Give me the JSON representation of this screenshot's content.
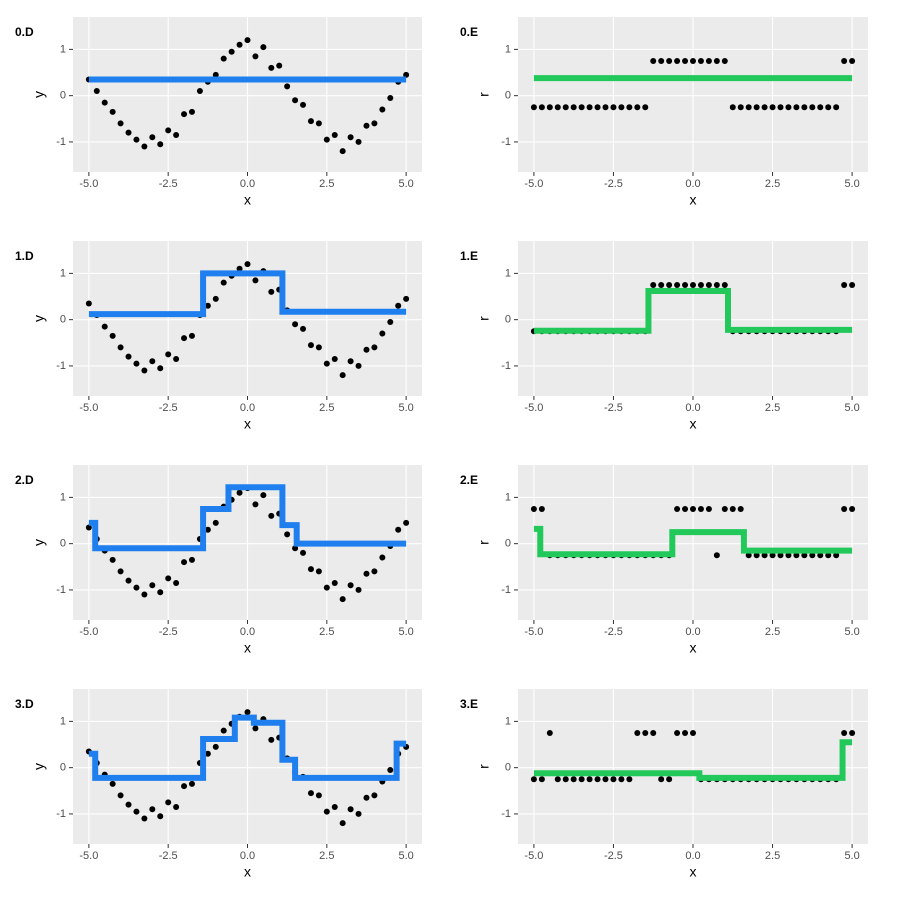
{
  "chart_data": [
    {
      "type": "scatter",
      "label": "0.D",
      "xlabel": "x",
      "ylabel": "y",
      "x": [
        -5,
        -4.75,
        -4.5,
        -4.25,
        -4,
        -3.75,
        -3.5,
        -3.25,
        -3,
        -2.75,
        -2.5,
        -2.25,
        -2,
        -1.75,
        -1.5,
        -1.25,
        -1,
        -0.75,
        -0.5,
        -0.25,
        0,
        0.25,
        0.5,
        0.75,
        1,
        1.25,
        1.5,
        1.75,
        2,
        2.25,
        2.5,
        2.75,
        3,
        3.25,
        3.5,
        3.75,
        4,
        4.25,
        4.5,
        4.75,
        5
      ],
      "y": [
        0.35,
        0.1,
        -0.15,
        -0.35,
        -0.6,
        -0.8,
        -0.95,
        -1.1,
        -0.9,
        -1.05,
        -0.75,
        -0.85,
        -0.4,
        -0.35,
        0.1,
        0.3,
        0.45,
        0.8,
        0.95,
        1.1,
        1.2,
        0.85,
        1.05,
        0.6,
        0.65,
        0.2,
        -0.1,
        -0.2,
        -0.55,
        -0.6,
        -0.95,
        -0.85,
        -1.2,
        -0.9,
        -1,
        -0.65,
        -0.6,
        -0.3,
        -0.05,
        0.3,
        0.45
      ],
      "point_color": "#000000",
      "line": {
        "x": [
          -5,
          5
        ],
        "y": [
          0.35,
          0.35
        ],
        "color": "#1f7fef"
      },
      "xlim": [
        -5.5,
        5.5
      ],
      "ylim": [
        -1.65,
        1.7
      ],
      "xticks": [
        {
          "value": -5,
          "label": "-5.0"
        },
        {
          "value": -2.5,
          "label": "-2.5"
        },
        {
          "value": 0,
          "label": "0.0"
        },
        {
          "value": 2.5,
          "label": "2.5"
        },
        {
          "value": 5,
          "label": "5.0"
        }
      ],
      "yticks": [
        -1,
        0,
        1
      ],
      "grid": true
    },
    {
      "type": "scatter",
      "label": "0.E",
      "xlabel": "x",
      "ylabel": "r",
      "x": [
        -5,
        -4.75,
        -4.5,
        -4.25,
        -4,
        -3.75,
        -3.5,
        -3.25,
        -3,
        -2.75,
        -2.5,
        -2.25,
        -2,
        -1.75,
        -1.5,
        -1.25,
        -1,
        -0.75,
        -0.5,
        -0.25,
        0,
        0.25,
        0.5,
        0.75,
        1,
        1.25,
        1.5,
        1.75,
        2,
        2.25,
        2.5,
        2.75,
        3,
        3.25,
        3.5,
        3.75,
        4,
        4.25,
        4.5,
        4.75,
        5
      ],
      "y": [
        -0.25,
        -0.25,
        -0.25,
        -0.25,
        -0.25,
        -0.25,
        -0.25,
        -0.25,
        -0.25,
        -0.25,
        -0.25,
        -0.25,
        -0.25,
        -0.25,
        -0.25,
        0.75,
        0.75,
        0.75,
        0.75,
        0.75,
        0.75,
        0.75,
        0.75,
        0.75,
        0.75,
        -0.25,
        -0.25,
        -0.25,
        -0.25,
        -0.25,
        -0.25,
        -0.25,
        -0.25,
        -0.25,
        -0.25,
        -0.25,
        -0.25,
        -0.25,
        -0.25,
        0.75,
        0.75
      ],
      "point_color": "#000000",
      "line": {
        "x": [
          -5,
          5
        ],
        "y": [
          0.38,
          0.38
        ],
        "color": "#22c95a"
      },
      "xlim": [
        -5.5,
        5.5
      ],
      "ylim": [
        -1.65,
        1.7
      ],
      "xticks": [
        {
          "value": -5,
          "label": "-5.0"
        },
        {
          "value": -2.5,
          "label": "-2.5"
        },
        {
          "value": 0,
          "label": "0.0"
        },
        {
          "value": 2.5,
          "label": "2.5"
        },
        {
          "value": 5,
          "label": "5.0"
        }
      ],
      "yticks": [
        -1,
        0,
        1
      ],
      "grid": true
    },
    {
      "type": "scatter",
      "label": "1.D",
      "xlabel": "x",
      "ylabel": "y",
      "x": [
        -5,
        -4.75,
        -4.5,
        -4.25,
        -4,
        -3.75,
        -3.5,
        -3.25,
        -3,
        -2.75,
        -2.5,
        -2.25,
        -2,
        -1.75,
        -1.5,
        -1.25,
        -1,
        -0.75,
        -0.5,
        -0.25,
        0,
        0.25,
        0.5,
        0.75,
        1,
        1.25,
        1.5,
        1.75,
        2,
        2.25,
        2.5,
        2.75,
        3,
        3.25,
        3.5,
        3.75,
        4,
        4.25,
        4.5,
        4.75,
        5
      ],
      "y": [
        0.35,
        0.1,
        -0.15,
        -0.35,
        -0.6,
        -0.8,
        -0.95,
        -1.1,
        -0.9,
        -1.05,
        -0.75,
        -0.85,
        -0.4,
        -0.35,
        0.1,
        0.3,
        0.45,
        0.8,
        0.95,
        1.1,
        1.2,
        0.85,
        1.05,
        0.6,
        0.65,
        0.2,
        -0.1,
        -0.2,
        -0.55,
        -0.6,
        -0.95,
        -0.85,
        -1.2,
        -0.9,
        -1,
        -0.65,
        -0.6,
        -0.3,
        -0.05,
        0.3,
        0.45
      ],
      "point_color": "#000000",
      "line": {
        "x": [
          -5,
          -1.4,
          -1.4,
          1.1,
          1.1,
          5
        ],
        "y": [
          0.12,
          0.12,
          1,
          1,
          0.17,
          0.17
        ],
        "color": "#1f7fef"
      },
      "xlim": [
        -5.5,
        5.5
      ],
      "ylim": [
        -1.65,
        1.7
      ],
      "xticks": [
        {
          "value": -5,
          "label": "-5.0"
        },
        {
          "value": -2.5,
          "label": "-2.5"
        },
        {
          "value": 0,
          "label": "0.0"
        },
        {
          "value": 2.5,
          "label": "2.5"
        },
        {
          "value": 5,
          "label": "5.0"
        }
      ],
      "yticks": [
        -1,
        0,
        1
      ],
      "grid": true
    },
    {
      "type": "scatter",
      "label": "1.E",
      "xlabel": "x",
      "ylabel": "r",
      "x": [
        -5,
        -4.75,
        -4.5,
        -4.25,
        -4,
        -3.75,
        -3.5,
        -3.25,
        -3,
        -2.75,
        -2.5,
        -2.25,
        -2,
        -1.75,
        -1.5,
        -1.25,
        -1,
        -0.75,
        -0.5,
        -0.25,
        0,
        0.25,
        0.5,
        0.75,
        1,
        1.25,
        1.5,
        1.75,
        2,
        2.25,
        2.5,
        2.75,
        3,
        3.25,
        3.5,
        3.75,
        4,
        4.25,
        4.5,
        4.75,
        5
      ],
      "y": [
        -0.25,
        -0.25,
        -0.25,
        -0.25,
        -0.25,
        -0.25,
        -0.25,
        -0.25,
        -0.25,
        -0.25,
        -0.25,
        -0.25,
        -0.25,
        -0.25,
        -0.25,
        0.75,
        0.75,
        0.75,
        0.75,
        0.75,
        0.75,
        0.75,
        0.75,
        0.75,
        0.75,
        -0.25,
        -0.25,
        -0.25,
        -0.25,
        -0.25,
        -0.25,
        -0.25,
        -0.25,
        -0.25,
        -0.25,
        -0.25,
        -0.25,
        -0.25,
        -0.25,
        0.75,
        0.75
      ],
      "point_color": "#000000",
      "line": {
        "x": [
          -5,
          -1.4,
          -1.4,
          1.1,
          1.1,
          5
        ],
        "y": [
          -0.24,
          -0.24,
          0.62,
          0.62,
          -0.22,
          -0.22
        ],
        "color": "#22c95a"
      },
      "xlim": [
        -5.5,
        5.5
      ],
      "ylim": [
        -1.65,
        1.7
      ],
      "xticks": [
        {
          "value": -5,
          "label": "-5.0"
        },
        {
          "value": -2.5,
          "label": "-2.5"
        },
        {
          "value": 0,
          "label": "0.0"
        },
        {
          "value": 2.5,
          "label": "2.5"
        },
        {
          "value": 5,
          "label": "5.0"
        }
      ],
      "yticks": [
        -1,
        0,
        1
      ],
      "grid": true
    },
    {
      "type": "scatter",
      "label": "2.D",
      "xlabel": "x",
      "ylabel": "y",
      "x": [
        -5,
        -4.75,
        -4.5,
        -4.25,
        -4,
        -3.75,
        -3.5,
        -3.25,
        -3,
        -2.75,
        -2.5,
        -2.25,
        -2,
        -1.75,
        -1.5,
        -1.25,
        -1,
        -0.75,
        -0.5,
        -0.25,
        0,
        0.25,
        0.5,
        0.75,
        1,
        1.25,
        1.5,
        1.75,
        2,
        2.25,
        2.5,
        2.75,
        3,
        3.25,
        3.5,
        3.75,
        4,
        4.25,
        4.5,
        4.75,
        5
      ],
      "y": [
        0.35,
        0.1,
        -0.15,
        -0.35,
        -0.6,
        -0.8,
        -0.95,
        -1.1,
        -0.9,
        -1.05,
        -0.75,
        -0.85,
        -0.4,
        -0.35,
        0.1,
        0.3,
        0.45,
        0.8,
        0.95,
        1.1,
        1.2,
        0.85,
        1.05,
        0.6,
        0.65,
        0.2,
        -0.1,
        -0.2,
        -0.55,
        -0.6,
        -0.95,
        -0.85,
        -1.2,
        -0.9,
        -1,
        -0.65,
        -0.6,
        -0.3,
        -0.05,
        0.3,
        0.45
      ],
      "point_color": "#000000",
      "line": {
        "x": [
          -5,
          -4.8,
          -4.8,
          -1.4,
          -1.4,
          -0.6,
          -0.6,
          1.1,
          1.1,
          1.55,
          1.55,
          5
        ],
        "y": [
          0.45,
          0.45,
          -0.1,
          -0.1,
          0.75,
          0.75,
          1.22,
          1.22,
          0.4,
          0.4,
          0,
          0
        ],
        "color": "#1f7fef"
      },
      "xlim": [
        -5.5,
        5.5
      ],
      "ylim": [
        -1.65,
        1.7
      ],
      "xticks": [
        {
          "value": -5,
          "label": "-5.0"
        },
        {
          "value": -2.5,
          "label": "-2.5"
        },
        {
          "value": 0,
          "label": "0.0"
        },
        {
          "value": 2.5,
          "label": "2.5"
        },
        {
          "value": 5,
          "label": "5.0"
        }
      ],
      "yticks": [
        -1,
        0,
        1
      ],
      "grid": true
    },
    {
      "type": "scatter",
      "label": "2.E",
      "xlabel": "x",
      "ylabel": "r",
      "x": [
        -5,
        -4.75,
        -4.5,
        -4.25,
        -4,
        -3.75,
        -3.5,
        -3.25,
        -3,
        -2.75,
        -2.5,
        -2.25,
        -2,
        -1.75,
        -1.5,
        -1.25,
        -1,
        -0.75,
        -0.5,
        -0.25,
        0,
        0.25,
        0.5,
        0.75,
        1,
        1.25,
        1.5,
        1.75,
        2,
        2.25,
        2.5,
        2.75,
        3,
        3.25,
        3.5,
        3.75,
        4,
        4.25,
        4.5,
        4.75,
        5
      ],
      "y": [
        0.75,
        0.75,
        -0.25,
        -0.25,
        -0.25,
        -0.25,
        -0.25,
        -0.25,
        -0.25,
        -0.25,
        -0.25,
        -0.25,
        -0.25,
        -0.25,
        -0.25,
        -0.25,
        -0.25,
        -0.25,
        0.75,
        0.75,
        0.75,
        0.75,
        0.75,
        -0.25,
        0.75,
        0.75,
        0.75,
        -0.25,
        -0.25,
        -0.25,
        -0.25,
        -0.25,
        -0.25,
        -0.25,
        -0.25,
        -0.25,
        -0.25,
        -0.25,
        -0.25,
        0.75,
        0.75
      ],
      "point_color": "#000000",
      "line": {
        "x": [
          -5,
          -4.8,
          -4.8,
          -0.65,
          -0.65,
          1.6,
          1.6,
          5
        ],
        "y": [
          0.32,
          0.32,
          -0.23,
          -0.23,
          0.25,
          0.25,
          -0.15,
          -0.15
        ],
        "color": "#22c95a"
      },
      "xlim": [
        -5.5,
        5.5
      ],
      "ylim": [
        -1.65,
        1.7
      ],
      "xticks": [
        {
          "value": -5,
          "label": "-5.0"
        },
        {
          "value": -2.5,
          "label": "-2.5"
        },
        {
          "value": 0,
          "label": "0.0"
        },
        {
          "value": 2.5,
          "label": "2.5"
        },
        {
          "value": 5,
          "label": "5.0"
        }
      ],
      "yticks": [
        -1,
        0,
        1
      ],
      "grid": true
    },
    {
      "type": "scatter",
      "label": "3.D",
      "xlabel": "x",
      "ylabel": "y",
      "x": [
        -5,
        -4.75,
        -4.5,
        -4.25,
        -4,
        -3.75,
        -3.5,
        -3.25,
        -3,
        -2.75,
        -2.5,
        -2.25,
        -2,
        -1.75,
        -1.5,
        -1.25,
        -1,
        -0.75,
        -0.5,
        -0.25,
        0,
        0.25,
        0.5,
        0.75,
        1,
        1.25,
        1.5,
        1.75,
        2,
        2.25,
        2.5,
        2.75,
        3,
        3.25,
        3.5,
        3.75,
        4,
        4.25,
        4.5,
        4.75,
        5
      ],
      "y": [
        0.35,
        0.1,
        -0.15,
        -0.35,
        -0.6,
        -0.8,
        -0.95,
        -1.1,
        -0.9,
        -1.05,
        -0.75,
        -0.85,
        -0.4,
        -0.35,
        0.1,
        0.3,
        0.45,
        0.8,
        0.95,
        1.1,
        1.2,
        0.85,
        1.05,
        0.6,
        0.65,
        0.2,
        -0.1,
        -0.2,
        -0.55,
        -0.6,
        -0.95,
        -0.85,
        -1.2,
        -0.9,
        -1,
        -0.65,
        -0.6,
        -0.3,
        -0.05,
        0.3,
        0.45
      ],
      "point_color": "#000000",
      "line": {
        "x": [
          -5,
          -4.8,
          -4.8,
          -1.4,
          -1.4,
          -0.4,
          -0.4,
          0.2,
          0.2,
          1.1,
          1.1,
          1.5,
          1.5,
          4.7,
          4.7,
          5
        ],
        "y": [
          0.3,
          0.3,
          -0.22,
          -0.22,
          0.62,
          0.62,
          1.08,
          1.08,
          0.97,
          0.97,
          0.17,
          0.17,
          -0.22,
          -0.22,
          0.52,
          0.52
        ],
        "color": "#1f7fef"
      },
      "xlim": [
        -5.5,
        5.5
      ],
      "ylim": [
        -1.65,
        1.7
      ],
      "xticks": [
        {
          "value": -5,
          "label": "-5.0"
        },
        {
          "value": -2.5,
          "label": "-2.5"
        },
        {
          "value": 0,
          "label": "0.0"
        },
        {
          "value": 2.5,
          "label": "2.5"
        },
        {
          "value": 5,
          "label": "5.0"
        }
      ],
      "yticks": [
        -1,
        0,
        1
      ],
      "grid": true
    },
    {
      "type": "scatter",
      "label": "3.E",
      "xlabel": "x",
      "ylabel": "r",
      "x": [
        -5,
        -4.75,
        -4.5,
        -4.25,
        -4,
        -3.75,
        -3.5,
        -3.25,
        -3,
        -2.75,
        -2.5,
        -2.25,
        -2,
        -1.75,
        -1.5,
        -1.25,
        -1,
        -0.75,
        -0.5,
        -0.25,
        0,
        0.25,
        0.5,
        0.75,
        1,
        1.25,
        1.5,
        1.75,
        2,
        2.25,
        2.5,
        2.75,
        3,
        3.25,
        3.5,
        3.75,
        4,
        4.25,
        4.5,
        4.75,
        5
      ],
      "y": [
        -0.25,
        -0.25,
        0.75,
        -0.25,
        -0.25,
        -0.25,
        -0.25,
        -0.25,
        -0.25,
        -0.25,
        -0.25,
        -0.25,
        -0.25,
        0.75,
        0.75,
        0.75,
        -0.25,
        -0.25,
        0.75,
        0.75,
        0.75,
        -0.25,
        -0.25,
        -0.25,
        -0.25,
        -0.25,
        -0.25,
        -0.25,
        -0.25,
        -0.25,
        -0.25,
        -0.25,
        -0.25,
        -0.25,
        -0.25,
        -0.25,
        -0.25,
        -0.25,
        -0.25,
        0.75,
        0.75
      ],
      "point_color": "#000000",
      "line": {
        "x": [
          -5,
          0.2,
          0.2,
          4.7,
          4.7,
          5
        ],
        "y": [
          -0.12,
          -0.12,
          -0.22,
          -0.22,
          0.55,
          0.55
        ],
        "color": "#22c95a"
      },
      "xlim": [
        -5.5,
        5.5
      ],
      "ylim": [
        -1.65,
        1.7
      ],
      "xticks": [
        {
          "value": -5,
          "label": "-5.0"
        },
        {
          "value": -2.5,
          "label": "-2.5"
        },
        {
          "value": 0,
          "label": "0.0"
        },
        {
          "value": 2.5,
          "label": "2.5"
        },
        {
          "value": 5,
          "label": "5.0"
        }
      ],
      "yticks": [
        -1,
        0,
        1
      ],
      "grid": true
    }
  ]
}
